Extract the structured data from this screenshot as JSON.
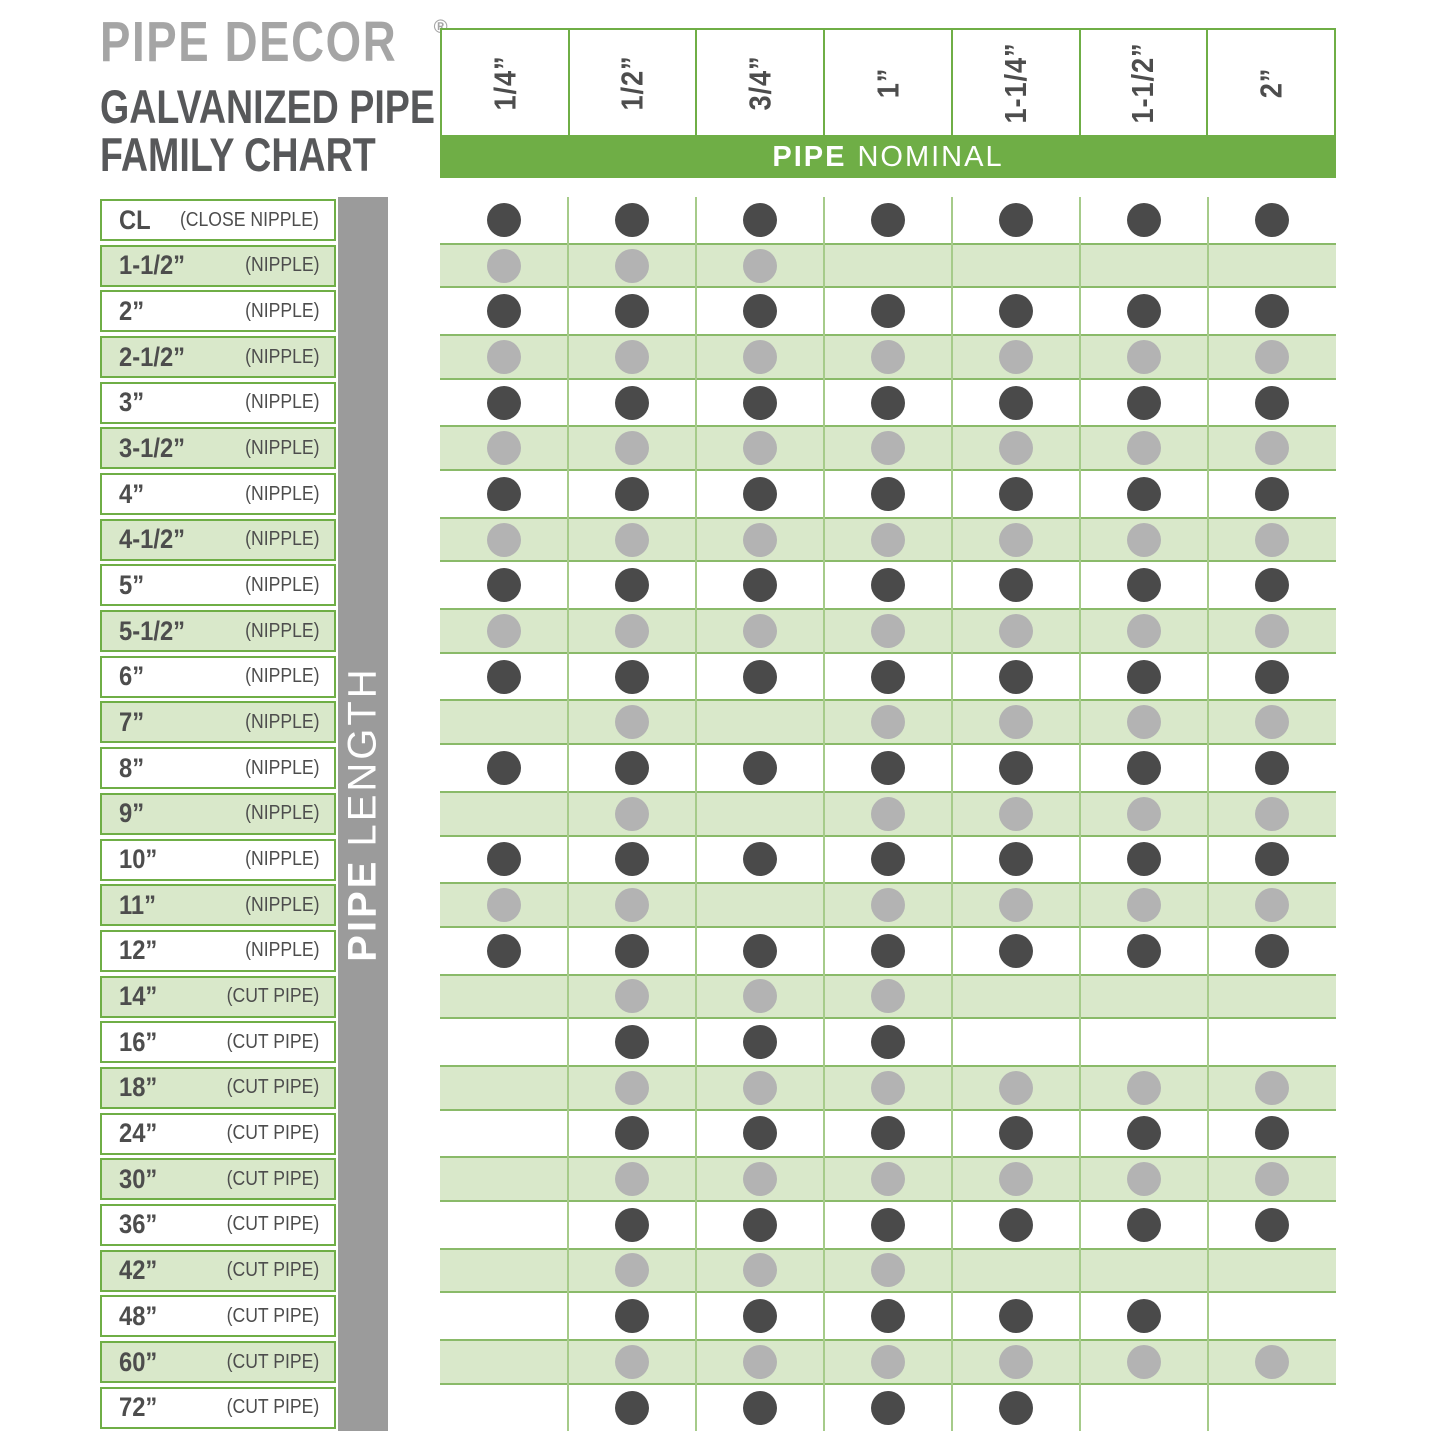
{
  "header": {
    "brand": "PIPE DECOR",
    "registered_mark": "®",
    "title_line1": "GALVANIZED PIPE",
    "title_line2": "FAMILY CHART"
  },
  "axes": {
    "nominal_bold": "PIPE",
    "nominal_rest": "NOMINAL",
    "length_bold": "PIPE",
    "length_rest": "LENGTH"
  },
  "colors": {
    "green_accent": "#6fae46",
    "row_band_bg": "#d9e8ca",
    "row_band_border": "#8aba69",
    "grid_line": "#a6cb8a",
    "gray_bar": "#9b9b9b",
    "dark_dot": "#4a4a4a",
    "light_dot": "#b3b3b3",
    "text_dark": "#4d4d4d",
    "logo_gray": "#a5a5a5",
    "title_gray": "#57585a"
  },
  "chart_data": {
    "type": "table",
    "title": "PIPE DECOR Galvanized Pipe Family Chart",
    "columns_axis_label": "PIPE NOMINAL",
    "rows_axis_label": "PIPE LENGTH",
    "columns": [
      "1/4”",
      "1/2”",
      "3/4”",
      "1”",
      "1-1/4”",
      "1-1/2”",
      "2”"
    ],
    "rows": [
      {
        "label": "CL",
        "sublabel": "(CLOSE NIPPLE)",
        "available": [
          1,
          1,
          1,
          1,
          1,
          1,
          1
        ]
      },
      {
        "label": "1-1/2”",
        "sublabel": "(NIPPLE)",
        "available": [
          1,
          1,
          1,
          0,
          0,
          0,
          0
        ]
      },
      {
        "label": "2”",
        "sublabel": "(NIPPLE)",
        "available": [
          1,
          1,
          1,
          1,
          1,
          1,
          1
        ]
      },
      {
        "label": "2-1/2”",
        "sublabel": "(NIPPLE)",
        "available": [
          1,
          1,
          1,
          1,
          1,
          1,
          1
        ]
      },
      {
        "label": "3”",
        "sublabel": "(NIPPLE)",
        "available": [
          1,
          1,
          1,
          1,
          1,
          1,
          1
        ]
      },
      {
        "label": "3-1/2”",
        "sublabel": "(NIPPLE)",
        "available": [
          1,
          1,
          1,
          1,
          1,
          1,
          1
        ]
      },
      {
        "label": "4”",
        "sublabel": "(NIPPLE)",
        "available": [
          1,
          1,
          1,
          1,
          1,
          1,
          1
        ]
      },
      {
        "label": "4-1/2”",
        "sublabel": "(NIPPLE)",
        "available": [
          1,
          1,
          1,
          1,
          1,
          1,
          1
        ]
      },
      {
        "label": "5”",
        "sublabel": "(NIPPLE)",
        "available": [
          1,
          1,
          1,
          1,
          1,
          1,
          1
        ]
      },
      {
        "label": "5-1/2”",
        "sublabel": "(NIPPLE)",
        "available": [
          1,
          1,
          1,
          1,
          1,
          1,
          1
        ]
      },
      {
        "label": "6”",
        "sublabel": "(NIPPLE)",
        "available": [
          1,
          1,
          1,
          1,
          1,
          1,
          1
        ]
      },
      {
        "label": "7”",
        "sublabel": "(NIPPLE)",
        "available": [
          0,
          1,
          0,
          1,
          1,
          1,
          1
        ]
      },
      {
        "label": "8”",
        "sublabel": "(NIPPLE)",
        "available": [
          1,
          1,
          1,
          1,
          1,
          1,
          1
        ]
      },
      {
        "label": "9”",
        "sublabel": "(NIPPLE)",
        "available": [
          0,
          1,
          0,
          1,
          1,
          1,
          1
        ]
      },
      {
        "label": "10”",
        "sublabel": "(NIPPLE)",
        "available": [
          1,
          1,
          1,
          1,
          1,
          1,
          1
        ]
      },
      {
        "label": "11”",
        "sublabel": "(NIPPLE)",
        "available": [
          1,
          1,
          0,
          1,
          1,
          1,
          1
        ]
      },
      {
        "label": "12”",
        "sublabel": "(NIPPLE)",
        "available": [
          1,
          1,
          1,
          1,
          1,
          1,
          1
        ]
      },
      {
        "label": "14”",
        "sublabel": "(CUT PIPE)",
        "available": [
          0,
          1,
          1,
          1,
          0,
          0,
          0
        ]
      },
      {
        "label": "16”",
        "sublabel": "(CUT PIPE)",
        "available": [
          0,
          1,
          1,
          1,
          0,
          0,
          0
        ]
      },
      {
        "label": "18”",
        "sublabel": "(CUT PIPE)",
        "available": [
          0,
          1,
          1,
          1,
          1,
          1,
          1
        ]
      },
      {
        "label": "24”",
        "sublabel": "(CUT PIPE)",
        "available": [
          0,
          1,
          1,
          1,
          1,
          1,
          1
        ]
      },
      {
        "label": "30”",
        "sublabel": "(CUT PIPE)",
        "available": [
          0,
          1,
          1,
          1,
          1,
          1,
          1
        ]
      },
      {
        "label": "36”",
        "sublabel": "(CUT PIPE)",
        "available": [
          0,
          1,
          1,
          1,
          1,
          1,
          1
        ]
      },
      {
        "label": "42”",
        "sublabel": "(CUT PIPE)",
        "available": [
          0,
          1,
          1,
          1,
          0,
          0,
          0
        ]
      },
      {
        "label": "48”",
        "sublabel": "(CUT PIPE)",
        "available": [
          0,
          1,
          1,
          1,
          1,
          1,
          0
        ]
      },
      {
        "label": "60”",
        "sublabel": "(CUT PIPE)",
        "available": [
          0,
          1,
          1,
          1,
          1,
          1,
          1
        ]
      },
      {
        "label": "72”",
        "sublabel": "(CUT PIPE)",
        "available": [
          0,
          1,
          1,
          1,
          1,
          0,
          0
        ]
      }
    ]
  }
}
